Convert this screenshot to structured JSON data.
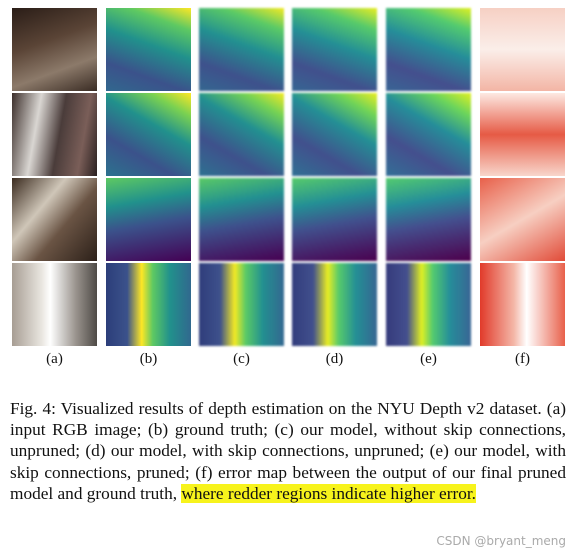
{
  "figure": {
    "labels": [
      "(a)",
      "(b)",
      "(c)",
      "(d)",
      "(e)",
      "(f)"
    ],
    "caption": {
      "text": "Fig. 4: Visualized results of depth estimation on the NYU Depth v2 dataset. (a) input RGB image; (b) ground truth; (c) our model, without skip connections, unpruned; (d) our model, with skip connections, unpruned; (e) our model, with skip connections, pruned; (f) error map between the output of our final pruned model and ground truth,",
      "highlight": "where redder regions indicate higher error."
    },
    "watermark": "CSDN @bryant_meng"
  }
}
